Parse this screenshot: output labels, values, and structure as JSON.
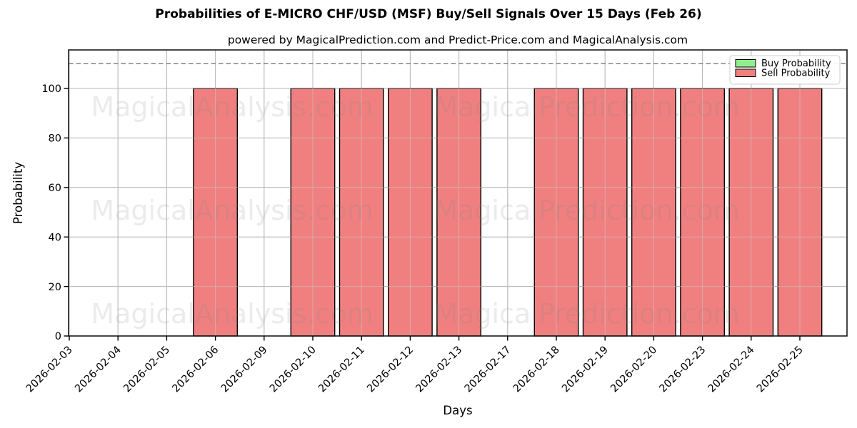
{
  "title": "Probabilities of E-MICRO CHF/USD (MSF) Buy/Sell Signals Over 15 Days (Feb 26)",
  "subtitle": "powered by MagicalPrediction.com and Predict-Price.com and MagicalAnalysis.com",
  "watermarks": {
    "left_text": "MagicalAnalysis.com",
    "right_text": "MagicalPrediction.com"
  },
  "chart_data": {
    "type": "bar",
    "title": "Probabilities of E-MICRO CHF/USD (MSF) Buy/Sell Signals Over 15 Days (Feb 26)",
    "xlabel": "Days",
    "ylabel": "Probability",
    "categories": [
      "2026-02-03",
      "2026-02-04",
      "2026-02-05",
      "2026-02-06",
      "2026-02-09",
      "2026-02-10",
      "2026-02-11",
      "2026-02-12",
      "2026-02-13",
      "2026-02-17",
      "2026-02-18",
      "2026-02-19",
      "2026-02-20",
      "2026-02-23",
      "2026-02-24",
      "2026-02-25"
    ],
    "series": [
      {
        "name": "Buy Probability",
        "color": "#90ee90",
        "values": [
          0,
          0,
          0,
          0,
          0,
          0,
          0,
          0,
          0,
          0,
          0,
          0,
          0,
          0,
          0,
          0
        ]
      },
      {
        "name": "Sell Probability",
        "color": "#f08080",
        "values": [
          0,
          0,
          0,
          100,
          0,
          100,
          100,
          100,
          100,
          0,
          100,
          100,
          100,
          100,
          100,
          100
        ]
      }
    ],
    "ylim": [
      0,
      115.6
    ],
    "yticks": [
      0,
      20,
      40,
      60,
      80,
      100
    ],
    "dashed_reference_line": 110,
    "grid": true,
    "legend_position": "upper right",
    "bar_edge_color": "#000000"
  },
  "colors": {
    "buy": "#90ee90",
    "sell": "#f08080",
    "grid": "#a8a8a8",
    "dashed_line": "#777777",
    "spine": "#1a1a1a",
    "legend_border": "#cccccc",
    "watermark": "#808080"
  }
}
